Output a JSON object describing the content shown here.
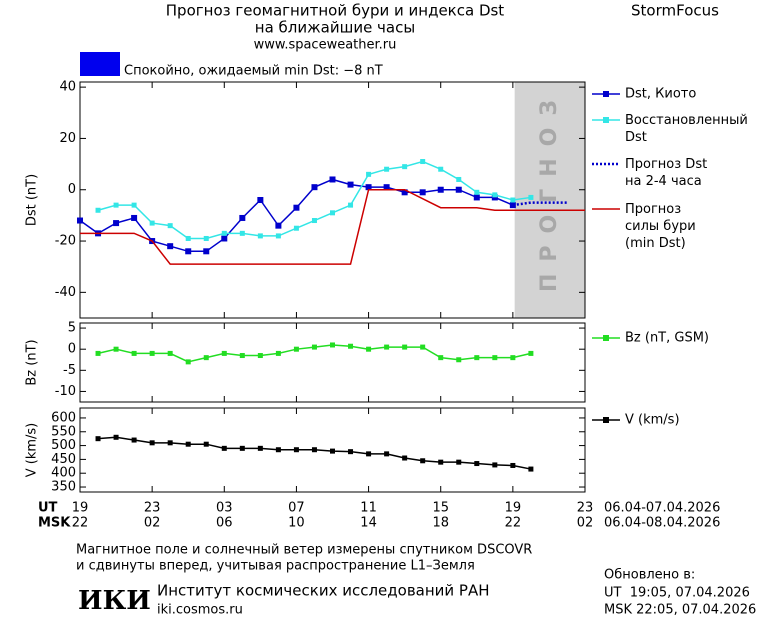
{
  "header": {
    "title": "Прогноз геомагнитной бури и индекса Dst",
    "subtitle": "на ближайшие часы",
    "site": "www.spaceweather.ru",
    "brand": "StormFocus"
  },
  "status": {
    "color": "#0000ee",
    "text": "Спокойно, ожидаемый min Dst: −8 nT"
  },
  "chart_data": [
    {
      "type": "line",
      "ylabel": "Dst (nT)",
      "xlim": [
        0,
        28
      ],
      "ylim": [
        -50,
        42
      ],
      "yticks": [
        -40,
        -20,
        0,
        20,
        40
      ],
      "legend": "outside-right",
      "shade": {
        "from": 24.1,
        "to": 28,
        "label": "ПРОГНОЗ",
        "color": "#d3d3d3"
      },
      "series": [
        {
          "name": "Dst, Киото",
          "color": "#0000cc",
          "marker": "square",
          "x": [
            0,
            1,
            2,
            3,
            4,
            5,
            6,
            7,
            8,
            9,
            10,
            11,
            12,
            13,
            14,
            15,
            16,
            17,
            18,
            19,
            20,
            21,
            22,
            23,
            24
          ],
          "values": [
            -12,
            -17,
            -13,
            -11,
            -20,
            -22,
            -24,
            -24,
            -19,
            -11,
            -4,
            -14,
            -7,
            1,
            4,
            2,
            1,
            1,
            -1,
            -1,
            0,
            0,
            -3,
            -3,
            -6
          ]
        },
        {
          "name": "Восстановленный\nDst",
          "color": "#33e6e6",
          "marker": "square",
          "x": [
            1,
            2,
            3,
            4,
            5,
            6,
            7,
            8,
            9,
            10,
            11,
            12,
            13,
            14,
            15,
            16,
            17,
            18,
            19,
            20,
            21,
            22,
            23,
            24,
            25
          ],
          "values": [
            -8,
            -6,
            -6,
            -13,
            -14,
            -19,
            -19,
            -17,
            -17,
            -18,
            -18,
            -15,
            -12,
            -9,
            -6,
            6,
            8,
            9,
            11,
            8,
            4,
            -1,
            -2,
            -4,
            -3
          ]
        },
        {
          "name": "Прогноз Dst\nна 2-4 часа",
          "color": "#0000cc",
          "dash": "dotted",
          "x": [
            24,
            25,
            26,
            27
          ],
          "values": [
            -6,
            -5,
            -5,
            -5
          ]
        },
        {
          "name": "Прогноз\nсилы бури\n(min Dst)",
          "color": "#cc0000",
          "x": [
            0,
            3,
            4,
            5,
            15,
            16,
            18,
            20,
            22,
            23,
            28
          ],
          "values": [
            -17,
            -17,
            -20,
            -29,
            -29,
            0,
            0,
            -7,
            -7,
            -8,
            -8
          ]
        }
      ]
    },
    {
      "type": "line",
      "ylabel": "Bz (nT)",
      "xlim": [
        0,
        28
      ],
      "ylim": [
        -12.5,
        6.2
      ],
      "yticks": [
        -10,
        -5,
        0,
        5
      ],
      "legend": "outside-right",
      "series": [
        {
          "name": "Bz (nT, GSM)",
          "color": "#22dd22",
          "marker": "square",
          "x": [
            1,
            2,
            3,
            4,
            5,
            6,
            7,
            8,
            9,
            10,
            11,
            12,
            13,
            14,
            15,
            16,
            17,
            18,
            19,
            20,
            21,
            22,
            23,
            24,
            25
          ],
          "values": [
            -1,
            0,
            -1,
            -1,
            -1,
            -3,
            -2,
            -1,
            -1.5,
            -1.5,
            -1,
            0,
            0.5,
            1,
            0.7,
            0,
            0.5,
            0.5,
            0.5,
            -2,
            -2.5,
            -2,
            -2,
            -2,
            -1
          ]
        }
      ]
    },
    {
      "type": "line",
      "ylabel": "V (km/s)",
      "xlim": [
        0,
        28
      ],
      "ylim": [
        332,
        636
      ],
      "yticks": [
        350,
        400,
        450,
        500,
        550,
        600
      ],
      "legend": "outside-right",
      "xticks": [
        {
          "value": 0,
          "label": "19"
        },
        {
          "value": 4,
          "label": "23"
        },
        {
          "value": 8,
          "label": "03"
        },
        {
          "value": 12,
          "label": "07"
        },
        {
          "value": 16,
          "label": "11"
        },
        {
          "value": 20,
          "label": "15"
        },
        {
          "value": 24,
          "label": "19"
        },
        {
          "value": 28,
          "label": "23"
        }
      ],
      "xticks_msk": [
        {
          "value": 0,
          "label": "22"
        },
        {
          "value": 4,
          "label": "02"
        },
        {
          "value": 8,
          "label": "06"
        },
        {
          "value": 12,
          "label": "10"
        },
        {
          "value": 16,
          "label": "14"
        },
        {
          "value": 20,
          "label": "18"
        },
        {
          "value": 24,
          "label": "22"
        },
        {
          "value": 28,
          "label": "02"
        }
      ],
      "xaxis_ut": "UT",
      "xaxis_msk": "MSK",
      "date_ut": "06.04-07.04.2026",
      "date_msk": "06.04-08.04.2026",
      "series": [
        {
          "name": "V (km/s)",
          "color": "#000000",
          "marker": "square",
          "x": [
            1,
            2,
            3,
            4,
            5,
            6,
            7,
            8,
            9,
            10,
            11,
            12,
            13,
            14,
            15,
            16,
            17,
            18,
            19,
            20,
            21,
            22,
            23,
            24,
            25
          ],
          "values": [
            525,
            530,
            520,
            510,
            510,
            505,
            505,
            490,
            490,
            490,
            485,
            485,
            485,
            480,
            478,
            470,
            470,
            455,
            445,
            440,
            440,
            435,
            430,
            428,
            415
          ]
        }
      ]
    }
  ],
  "footer": {
    "line1": "Магнитное поле и солнечный ветер измерены спутником DSCOVR",
    "line2": "и сдвинуты вперед, учитывая распространение L1–Земля",
    "updated": "Обновлено в:",
    "updated_ut": "UT  19:05, 07.04.2026",
    "updated_msk": "MSK 22:05, 07.04.2026",
    "logo": "ИКИ",
    "institute": "Институт космических исследований РАН",
    "url": "iki.cosmos.ru"
  }
}
